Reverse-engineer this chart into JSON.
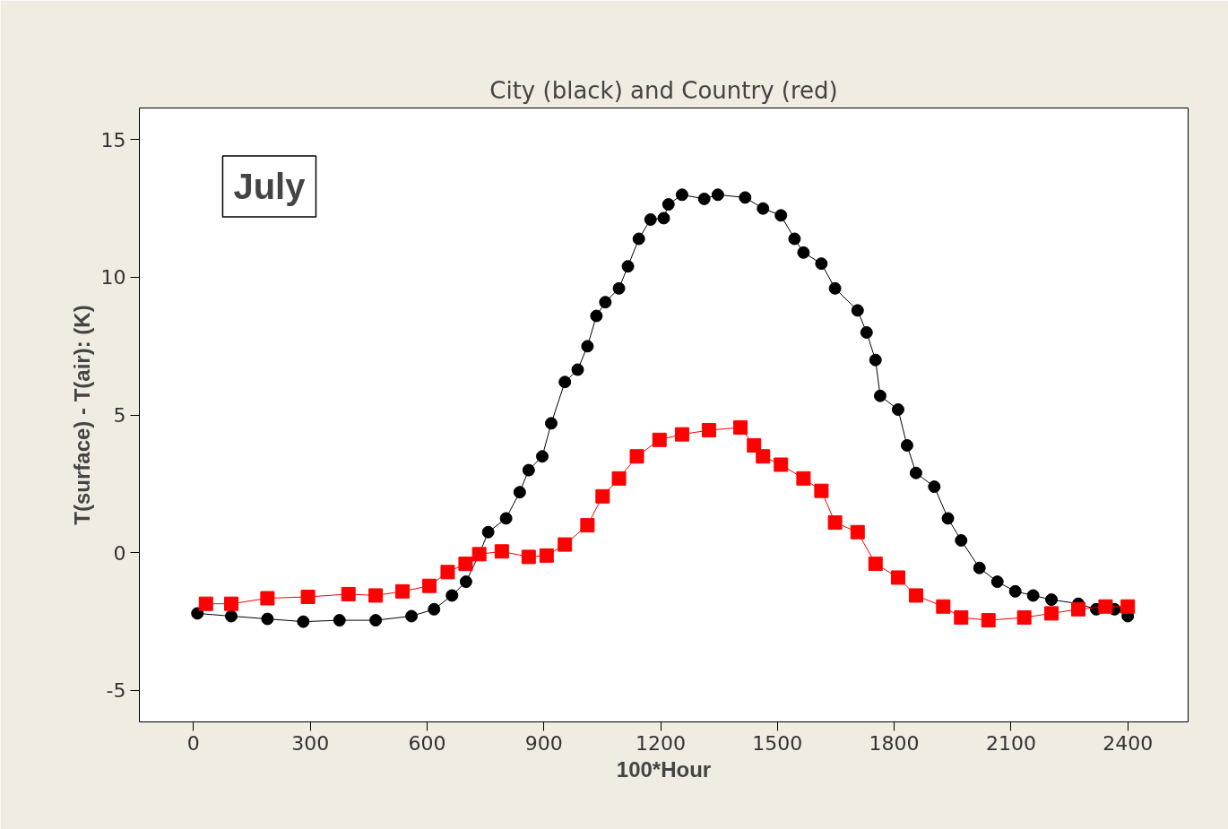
{
  "chart_data": {
    "type": "line",
    "title": "City (black) and Country (red)",
    "xlabel": "100*Hour",
    "ylabel": "T(surface) - T(air): (K)",
    "annotations": [
      "July"
    ],
    "xlim": [
      -139,
      2555
    ],
    "ylim": [
      -6.14,
      16.15
    ],
    "xticks": [
      0,
      300,
      600,
      900,
      1200,
      1500,
      1800,
      2100,
      2400
    ],
    "yticks": [
      -5,
      0,
      5,
      10,
      15
    ],
    "grid": false,
    "line_style": "solid",
    "series": [
      {
        "marker": "circle",
        "color": "#000000",
        "x": [
          10,
          97,
          190,
          282,
          375,
          468,
          560,
          618,
          664,
          700,
          734,
          757,
          803,
          838,
          861,
          896,
          919,
          954,
          987,
          1012,
          1035,
          1058,
          1093,
          1116,
          1144,
          1174,
          1208,
          1220,
          1255,
          1312,
          1347,
          1417,
          1463,
          1509,
          1544,
          1567,
          1613,
          1648,
          1706,
          1729,
          1752,
          1764,
          1810,
          1833,
          1856,
          1903,
          1938,
          1972,
          2019,
          2065,
          2111,
          2157,
          2204,
          2273,
          2319,
          2366,
          2400
        ],
        "values": [
          -2.2,
          -2.3,
          -2.4,
          -2.5,
          -2.45,
          -2.45,
          -2.3,
          -2.05,
          -1.55,
          -1.05,
          -0.05,
          0.75,
          1.25,
          2.2,
          3.0,
          3.5,
          4.7,
          6.2,
          6.65,
          7.5,
          8.6,
          9.1,
          9.6,
          10.4,
          11.4,
          12.1,
          12.15,
          12.65,
          13.0,
          12.85,
          13.0,
          12.9,
          12.5,
          12.25,
          11.4,
          10.9,
          10.5,
          9.6,
          8.8,
          8.0,
          7.0,
          5.7,
          5.2,
          3.9,
          2.9,
          2.4,
          1.25,
          0.45,
          -0.55,
          -1.05,
          -1.4,
          -1.55,
          -1.7,
          -1.85,
          -2.05,
          -2.05,
          -2.3
        ]
      },
      {
        "marker": "square",
        "color": "#ff0000",
        "x": [
          32,
          97,
          190,
          294,
          398,
          468,
          537,
          606,
          653,
          699,
          734,
          792,
          861,
          907,
          954,
          1012,
          1051,
          1093,
          1139,
          1197,
          1255,
          1324,
          1405,
          1440,
          1463,
          1509,
          1567,
          1613,
          1648,
          1706,
          1752,
          1810,
          1856,
          1926,
          1972,
          2042,
          2134,
          2204,
          2273,
          2343,
          2400
        ],
        "values": [
          -1.85,
          -1.85,
          -1.65,
          -1.6,
          -1.5,
          -1.55,
          -1.4,
          -1.2,
          -0.7,
          -0.4,
          -0.05,
          0.05,
          -0.15,
          -0.1,
          0.3,
          1.0,
          2.05,
          2.7,
          3.5,
          4.1,
          4.3,
          4.45,
          4.55,
          3.9,
          3.5,
          3.2,
          2.7,
          2.25,
          1.1,
          0.75,
          -0.4,
          -0.9,
          -1.55,
          -1.95,
          -2.35,
          -2.45,
          -2.35,
          -2.2,
          -2.05,
          -1.95,
          -1.95
        ]
      }
    ]
  }
}
